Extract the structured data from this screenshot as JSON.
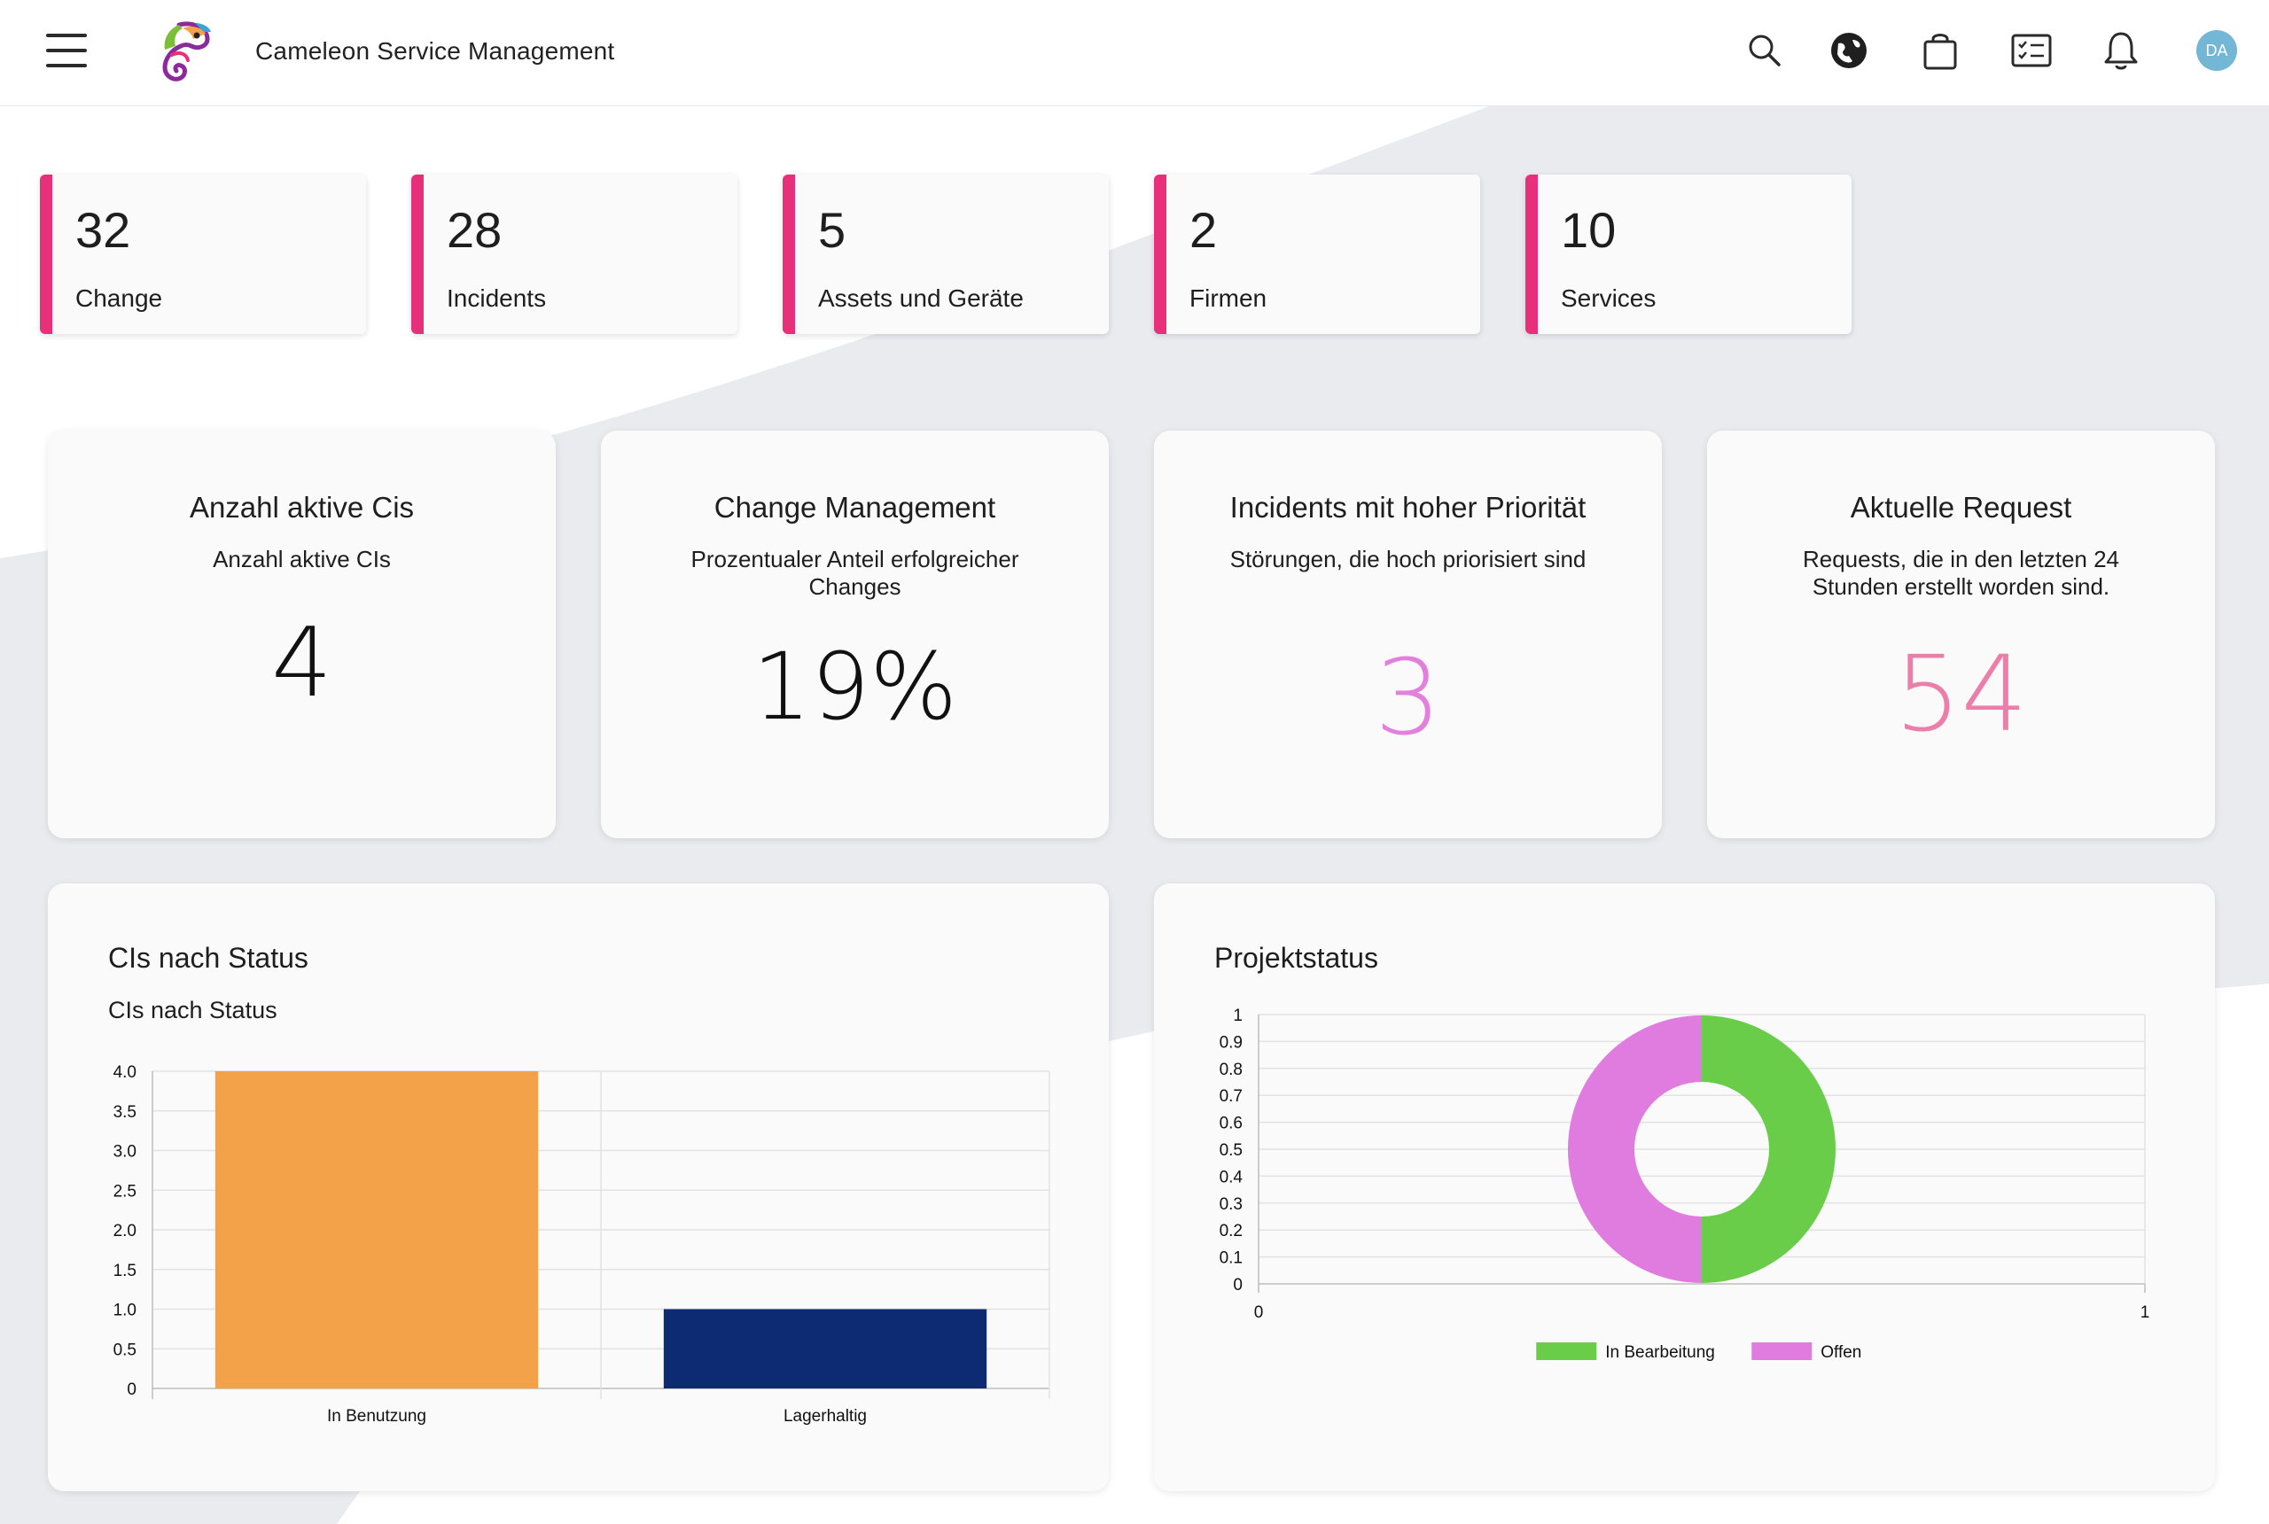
{
  "header": {
    "app_title": "Cameleon Service Management",
    "avatar_initials": "DA",
    "icons": [
      "menu-icon",
      "chameleon-logo",
      "search-icon",
      "globe-icon",
      "shopping-bag-icon",
      "checklist-icon",
      "bell-icon"
    ]
  },
  "kpis": [
    {
      "value": "32",
      "label": "Change"
    },
    {
      "value": "28",
      "label": "Incidents"
    },
    {
      "value": "5",
      "label": "Assets und Geräte"
    },
    {
      "value": "2",
      "label": "Firmen"
    },
    {
      "value": "10",
      "label": "Services"
    }
  ],
  "metrics": [
    {
      "title": "Anzahl aktive Cis",
      "subtitle": "Anzahl aktive CIs",
      "value": "4",
      "color": "#111111"
    },
    {
      "title": "Change Management",
      "subtitle": "Prozentualer Anteil erfolgreicher Changes",
      "value": "19%",
      "color": "#111111"
    },
    {
      "title": "Incidents mit hoher Priorität",
      "subtitle": "Störungen, die hoch priorisiert sind",
      "value": "3",
      "color": "#e37fdc"
    },
    {
      "title": "Aktuelle Request",
      "subtitle": "Requests, die in den letzten 24 Stunden erstellt worden sind.",
      "value": "54",
      "color": "#ec7fa9"
    }
  ],
  "chart_data": [
    {
      "type": "bar",
      "title": "CIs nach Status",
      "subtitle": "CIs nach Status",
      "categories": [
        "In Benutzung",
        "Lagerhaltig"
      ],
      "values": [
        4,
        1
      ],
      "colors": [
        "#f3a24a",
        "#0d2b72"
      ],
      "ylim": [
        0,
        4
      ],
      "yticks": [
        "4.0",
        "3.5",
        "3.0",
        "2.5",
        "2.0",
        "1.5",
        "1.0",
        "0.5",
        "0"
      ],
      "grid": true
    },
    {
      "type": "pie",
      "title": "Projektstatus",
      "labels": [
        "In Bearbeitung",
        "Offen"
      ],
      "values": [
        1,
        1
      ],
      "colors": [
        "#6acd49",
        "#e07cdf"
      ],
      "yticks": [
        "1",
        "0.9",
        "0.8",
        "0.7",
        "0.6",
        "0.5",
        "0.4",
        "0.3",
        "0.2",
        "0.1",
        "0"
      ],
      "xticks": [
        "0",
        "1"
      ],
      "legend": "bottom",
      "grid": true
    }
  ]
}
